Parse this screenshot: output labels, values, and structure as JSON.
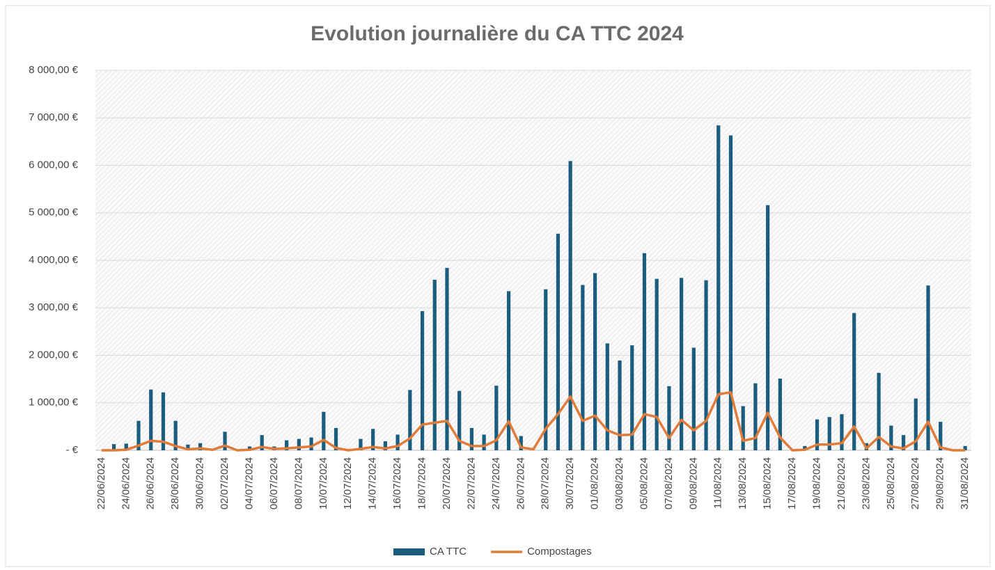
{
  "chart_data": {
    "type": "bar_line",
    "title": "Evolution journalière du CA TTC 2024",
    "categories": [
      "22/06/2024",
      null,
      "24/06/2024",
      null,
      "26/06/2024",
      null,
      "28/06/2024",
      null,
      "30/06/2024",
      null,
      "02/07/2024",
      null,
      "04/07/2024",
      null,
      "06/07/2024",
      null,
      "08/07/2024",
      null,
      "10/07/2024",
      null,
      "12/07/2024",
      null,
      "14/07/2024",
      null,
      "16/07/2024",
      null,
      "18/07/2024",
      null,
      "20/07/2024",
      null,
      "22/07/2024",
      null,
      "24/07/2024",
      null,
      "26/07/2024",
      null,
      "28/07/2024",
      null,
      "30/07/2024",
      null,
      "01/08/2024",
      null,
      "03/08/2024",
      null,
      "05/08/2024",
      null,
      "07/08/2024",
      null,
      "09/08/2024",
      null,
      "11/08/2024",
      null,
      "13/08/2024",
      null,
      "15/08/2024",
      null,
      "17/08/2024",
      null,
      "19/08/2024",
      null,
      "21/08/2024",
      null,
      "23/08/2024",
      null,
      "25/08/2024",
      null,
      "27/08/2024",
      null,
      "29/08/2024",
      null,
      "31/08/2024"
    ],
    "series": [
      {
        "name": "CA TTC",
        "type": "bar",
        "color": "#1a5d7e",
        "values": [
          0,
          130,
          140,
          620,
          1280,
          1220,
          620,
          120,
          150,
          20,
          390,
          0,
          80,
          320,
          80,
          210,
          240,
          270,
          810,
          470,
          0,
          240,
          450,
          190,
          330,
          1270,
          2930,
          3590,
          3840,
          1250,
          470,
          330,
          1360,
          3350,
          300,
          0,
          3390,
          4560,
          6090,
          3480,
          3730,
          2250,
          1890,
          2210,
          4150,
          3610,
          1350,
          3630,
          2160,
          3580,
          6840,
          6630,
          930,
          1410,
          5160,
          1510,
          0,
          90,
          650,
          700,
          760,
          2890,
          150,
          1630,
          520,
          320,
          1090,
          3470,
          600,
          0,
          90
        ]
      },
      {
        "name": "Compostages",
        "type": "line",
        "color": "#e07b39",
        "values": [
          0,
          0,
          10,
          100,
          200,
          180,
          90,
          20,
          40,
          10,
          100,
          0,
          10,
          70,
          30,
          40,
          60,
          80,
          220,
          50,
          0,
          30,
          70,
          40,
          90,
          250,
          540,
          580,
          620,
          200,
          90,
          90,
          210,
          610,
          60,
          20,
          450,
          760,
          1130,
          620,
          730,
          420,
          320,
          330,
          760,
          700,
          260,
          640,
          420,
          620,
          1180,
          1220,
          200,
          260,
          790,
          270,
          0,
          10,
          120,
          120,
          150,
          500,
          40,
          280,
          80,
          40,
          190,
          600,
          60,
          0,
          0
        ]
      }
    ],
    "ylim": [
      0,
      8000
    ],
    "yticks": [
      {
        "value": 0,
        "label": "-  €"
      },
      {
        "value": 1000,
        "label": "1 000,00 €"
      },
      {
        "value": 2000,
        "label": "2 000,00 €"
      },
      {
        "value": 3000,
        "label": "3 000,00 €"
      },
      {
        "value": 4000,
        "label": "4 000,00 €"
      },
      {
        "value": 5000,
        "label": "5 000,00 €"
      },
      {
        "value": 6000,
        "label": "6 000,00 €"
      },
      {
        "value": 7000,
        "label": "7 000,00 €"
      },
      {
        "value": 8000,
        "label": "8 000,00 €"
      }
    ],
    "grid": true,
    "legend": "bottom"
  }
}
